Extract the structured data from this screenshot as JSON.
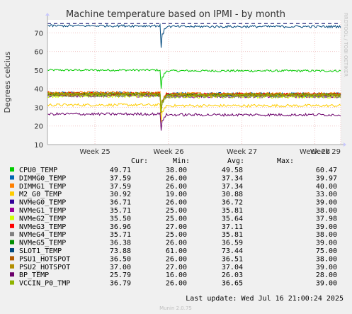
{
  "chart_data": {
    "type": "line",
    "title": "Machine temperature based on IPMI - by month",
    "ylabel": "Degrees celcius",
    "side_label": "RRDTOOL / TOBI OETIKER",
    "footer": "Munin 2.0.75",
    "last_update": "Last update:  Wed Jul 16 21:00:24 2025",
    "ylim": [
      10,
      77
    ],
    "yticks": [
      10,
      20,
      30,
      40,
      50,
      60,
      70
    ],
    "x_weeks": [
      "Week 25",
      "Week 26",
      "Week 27",
      "Week 28",
      "Week 29"
    ],
    "x_tick_fraction": [
      0.162,
      0.413,
      0.663,
      0.912,
      1.0
    ],
    "event_fraction": 0.387,
    "grid": true,
    "legend_headers": [
      "Cur:",
      "Min:",
      "Avg:",
      "Max:"
    ],
    "warning_line": 75,
    "series": [
      {
        "name": "CPU0_TEMP",
        "color": "#00cc00",
        "cur": "49.71",
        "min": "38.00",
        "avg": "49.58",
        "max": "60.47",
        "base": 49.6,
        "dip": 40.0
      },
      {
        "name": "DIMMG0_TEMP",
        "color": "#0066b3",
        "cur": "37.59",
        "min": "26.00",
        "avg": "37.34",
        "max": "39.97",
        "base": 37.3,
        "dip": 27.0
      },
      {
        "name": "DIMMG1_TEMP",
        "color": "#ff8000",
        "cur": "37.59",
        "min": "26.00",
        "avg": "37.34",
        "max": "40.00",
        "base": 37.4,
        "dip": 27.0
      },
      {
        "name": "M2_G0_TEMP",
        "color": "#ffcc00",
        "cur": "30.92",
        "min": "19.00",
        "avg": "30.88",
        "max": "33.00",
        "base": 30.9,
        "dip": 22.0
      },
      {
        "name": "NVMeG0_TEMP",
        "color": "#330099",
        "cur": "36.71",
        "min": "26.00",
        "avg": "36.72",
        "max": "39.00",
        "base": 36.7,
        "dip": 28.0
      },
      {
        "name": "NVMeG1_TEMP",
        "color": "#990099",
        "cur": "35.71",
        "min": "25.00",
        "avg": "35.81",
        "max": "38.00",
        "base": 35.8,
        "dip": 27.0
      },
      {
        "name": "NVMeG2_TEMP",
        "color": "#ccff00",
        "cur": "35.50",
        "min": "25.00",
        "avg": "35.64",
        "max": "37.98",
        "base": 35.6,
        "dip": 27.0
      },
      {
        "name": "NVMeG3_TEMP",
        "color": "#ff0000",
        "cur": "36.96",
        "min": "27.00",
        "avg": "37.11",
        "max": "39.00",
        "base": 37.1,
        "dip": 28.0
      },
      {
        "name": "NVMeG4_TEMP",
        "color": "#808080",
        "cur": "35.71",
        "min": "25.00",
        "avg": "35.81",
        "max": "38.00",
        "base": 35.8,
        "dip": 27.0
      },
      {
        "name": "NVMeG5_TEMP",
        "color": "#008f00",
        "cur": "36.38",
        "min": "26.00",
        "avg": "36.59",
        "max": "39.00",
        "base": 36.6,
        "dip": 27.0
      },
      {
        "name": "SLOT1_TEMP",
        "color": "#00487d",
        "cur": "73.88",
        "min": "61.00",
        "avg": "73.44",
        "max": "75.00",
        "base": 73.4,
        "dip": 62.0
      },
      {
        "name": "PSU1_HOTSPOT",
        "color": "#b35a00",
        "cur": "36.50",
        "min": "26.00",
        "avg": "36.51",
        "max": "38.00",
        "base": 36.5,
        "dip": 27.0
      },
      {
        "name": "PSU2_HOTSPOT",
        "color": "#b38f00",
        "cur": "37.00",
        "min": "27.00",
        "avg": "37.04",
        "max": "39.00",
        "base": 37.0,
        "dip": 28.0
      },
      {
        "name": "BP_TEMP",
        "color": "#6b006b",
        "cur": "25.79",
        "min": "16.00",
        "avg": "26.03",
        "max": "28.00",
        "base": 26.0,
        "dip": 17.5
      },
      {
        "name": "VCCIN_P0_TMP",
        "color": "#8fb300",
        "cur": "36.79",
        "min": "26.00",
        "avg": "36.65",
        "max": "39.00",
        "base": 36.7,
        "dip": 27.0
      }
    ]
  }
}
